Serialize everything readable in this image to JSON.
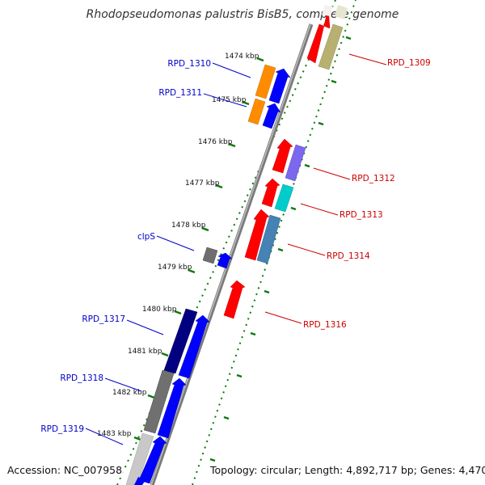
{
  "title": "Rhodopseudomonas palustris BisB5, complete genome",
  "footer": {
    "accession": "Accession: NC_007958",
    "summary": "Topology: circular; Length: 4,892,717 bp; Genes: 4,470"
  },
  "kbp_labels": [
    "1474 kbp",
    "1475 kbp",
    "1476 kbp",
    "1477 kbp",
    "1478 kbp",
    "1479 kbp",
    "1480 kbp",
    "1481 kbp",
    "1482 kbp",
    "1483 kbp"
  ],
  "left_genes": [
    {
      "name": "RPD_1310",
      "color": "#0000c8"
    },
    {
      "name": "RPD_1311",
      "color": "#0000c8"
    },
    {
      "name": "clpS",
      "color": "#0000c8"
    },
    {
      "name": "RPD_1317",
      "color": "#0000c8"
    },
    {
      "name": "RPD_1318",
      "color": "#0000c8"
    },
    {
      "name": "RPD_1319",
      "color": "#0000c8"
    }
  ],
  "right_genes": [
    {
      "name": "RPD_1309",
      "color": "#cc0000"
    },
    {
      "name": "RPD_1312",
      "color": "#cc0000"
    },
    {
      "name": "RPD_1313",
      "color": "#cc0000"
    },
    {
      "name": "RPD_1314",
      "color": "#cc0000"
    },
    {
      "name": "RPD_1316",
      "color": "#cc0000"
    }
  ],
  "colors": {
    "tick_green": "#0a7a0a",
    "backbone": "#888888",
    "strand_forward": "#0000ff",
    "strand_reverse": "#ff0000",
    "orange": "#ff8c00",
    "khaki": "#b8b070",
    "purple": "#7b68ee",
    "cyan": "#00cccc",
    "steelblue": "#4682b4",
    "navy": "#000080",
    "gray": "#707070",
    "lightgray": "#c8c8c8"
  }
}
